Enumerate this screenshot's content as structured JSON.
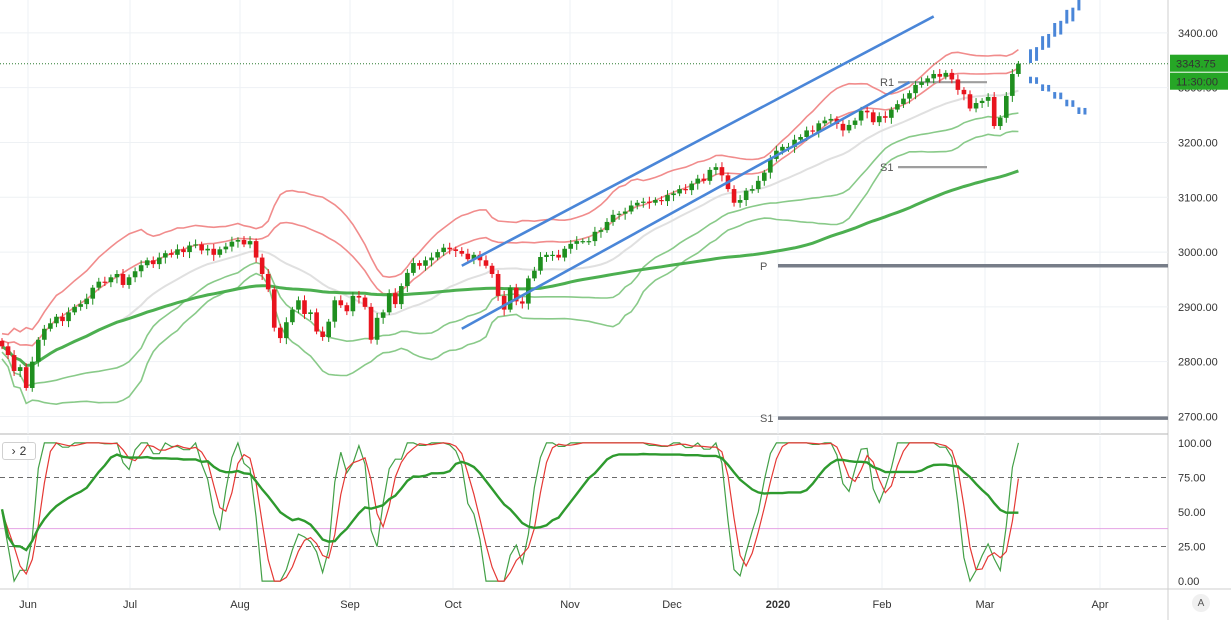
{
  "chart_data": [
    {
      "type": "candlestick",
      "price_axis": {
        "ticks": [
          2700,
          2800,
          2900,
          3000,
          3100,
          3200,
          3300,
          3400
        ],
        "tick_labels": [
          "2700.00",
          "2800.00",
          "2900.00",
          "3000.00",
          "3100.00",
          "3200.00",
          "3300.00",
          "3400.00"
        ],
        "ylim": [
          2668,
          3460
        ]
      },
      "time_axis": {
        "labels": [
          "Jun",
          "Jul",
          "Aug",
          "Sep",
          "Oct",
          "Nov",
          "Dec",
          "2020",
          "Feb",
          "Mar",
          "Apr"
        ],
        "range": [
          "2019-05-29",
          "2020-04-20"
        ]
      },
      "last_price": {
        "value": 3343.75,
        "label": "3343.75",
        "countdown": "11:30:00",
        "color": "#26a626"
      },
      "closes": [
        2828,
        2812,
        2783,
        2790,
        2752,
        2800,
        2840,
        2860,
        2870,
        2882,
        2874,
        2890,
        2900,
        2905,
        2915,
        2935,
        2946,
        2945,
        2954,
        2960,
        2940,
        2954,
        2965,
        2976,
        2985,
        2978,
        2990,
        2998,
        2995,
        3005,
        3000,
        3012,
        3014,
        3003,
        3006,
        2995,
        3005,
        3010,
        3019,
        3022,
        3014,
        3020,
        2990,
        2960,
        2932,
        2862,
        2843,
        2872,
        2895,
        2912,
        2887,
        2890,
        2855,
        2845,
        2873,
        2912,
        2903,
        2892,
        2920,
        2917,
        2900,
        2840,
        2880,
        2890,
        2925,
        2905,
        2938,
        2962,
        2980,
        2975,
        2985,
        2990,
        3000,
        3008,
        3005,
        3002,
        2997,
        2987,
        2995,
        2985,
        2975,
        2960,
        2920,
        2895,
        2935,
        2910,
        2906,
        2952,
        2966,
        2991,
        2995,
        2995,
        2990,
        3006,
        3015,
        3020,
        3020,
        3020,
        3037,
        3040,
        3055,
        3068,
        3070,
        3074,
        3085,
        3090,
        3092,
        3090,
        3095,
        3093,
        3104,
        3107,
        3115,
        3113,
        3125,
        3134,
        3130,
        3150,
        3155,
        3140,
        3115,
        3090,
        3095,
        3112,
        3115,
        3130,
        3145,
        3170,
        3185,
        3192,
        3192,
        3205,
        3210,
        3222,
        3220,
        3235,
        3240,
        3243,
        3234,
        3222,
        3232,
        3240,
        3258,
        3255,
        3237,
        3248,
        3245,
        3260,
        3270,
        3280,
        3290,
        3305,
        3310,
        3317,
        3325,
        3320,
        3327,
        3315,
        3296,
        3288,
        3262,
        3272,
        3276,
        3283,
        3230,
        3245,
        3285,
        3325,
        3343.75
      ],
      "indicators": {
        "ma_long_color": "#4caf50",
        "ma_mid_color": "#e0e0e0",
        "upper_band_color": "#f08080",
        "lower_band_color": "#7cc47c",
        "trend_channel_color": "#4a86d8",
        "projection_color": "#4a86d8"
      },
      "pivot_levels": [
        {
          "label": "P",
          "value": 2975
        },
        {
          "label": "S1",
          "value": 2697
        },
        {
          "label": "R1",
          "value": 3310
        },
        {
          "label": "S1",
          "value": 3155
        }
      ]
    },
    {
      "type": "line",
      "name": "stochastic",
      "pane_toggle_label": "2",
      "yticks": [
        0,
        25,
        50,
        75,
        100
      ],
      "ytick_labels": [
        "0.00",
        "25.00",
        "50.00",
        "75.00",
        "100.00"
      ],
      "ylim": [
        -5,
        105
      ],
      "reference_lines": [
        25,
        75
      ],
      "colors": {
        "fast": "#43a047",
        "slow": "#e53935",
        "trend": "#2e9a2e"
      }
    }
  ],
  "ui": {
    "auto_scale_label": "A"
  }
}
